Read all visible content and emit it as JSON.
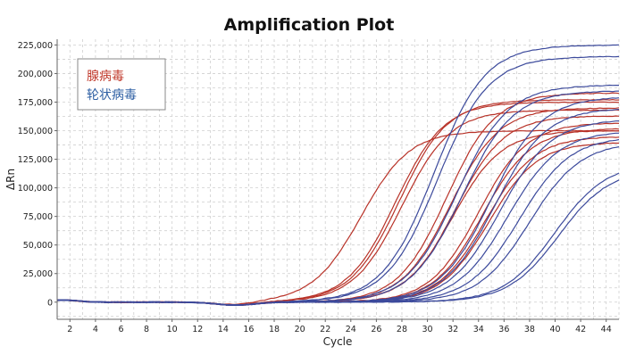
{
  "chart_data": {
    "type": "line",
    "title": "Amplification Plot",
    "xlabel": "Cycle",
    "ylabel": "ΔRn",
    "xlim": [
      1,
      45
    ],
    "ylim": [
      -15000,
      230000
    ],
    "xticks": [
      2,
      4,
      6,
      8,
      10,
      12,
      14,
      16,
      18,
      20,
      22,
      24,
      26,
      28,
      30,
      32,
      34,
      36,
      38,
      40,
      42,
      44
    ],
    "yticks": [
      0,
      25000,
      50000,
      75000,
      100000,
      125000,
      150000,
      175000,
      200000,
      225000
    ],
    "ytick_labels": [
      "0",
      "25,000",
      "50,000",
      "75,000",
      "100,000",
      "125,000",
      "150,000",
      "175,000",
      "200,000",
      "225,000"
    ],
    "grid": true,
    "legend": {
      "position": "top-left",
      "entries": [
        {
          "label": "腺病毒",
          "color": "#c0392b"
        },
        {
          "label": "轮状病毒",
          "color": "#2e5fa3"
        }
      ]
    },
    "series": [
      {
        "name": "腺病毒",
        "color": "#b83228",
        "curves": [
          {
            "plateau": 150000,
            "midpoint": 24.8,
            "slope": 1.9
          },
          {
            "plateau": 175000,
            "midpoint": 27.5,
            "slope": 1.9
          },
          {
            "plateau": 177000,
            "midpoint": 27.8,
            "slope": 1.9
          },
          {
            "plateau": 168000,
            "midpoint": 28.0,
            "slope": 1.9
          },
          {
            "plateau": 183000,
            "midpoint": 31.5,
            "slope": 1.9
          },
          {
            "plateau": 170000,
            "midpoint": 31.8,
            "slope": 1.9
          },
          {
            "plateau": 163000,
            "midpoint": 32.2,
            "slope": 1.9
          },
          {
            "plateau": 150000,
            "midpoint": 32.0,
            "slope": 1.9
          },
          {
            "plateau": 157000,
            "midpoint": 34.0,
            "slope": 1.9
          },
          {
            "plateau": 152000,
            "midpoint": 34.3,
            "slope": 1.9
          },
          {
            "plateau": 145000,
            "midpoint": 34.6,
            "slope": 1.9
          },
          {
            "plateau": 140000,
            "midpoint": 34.8,
            "slope": 1.9
          }
        ]
      },
      {
        "name": "轮状病毒",
        "color": "#3c4a9c",
        "curves": [
          {
            "plateau": 225000,
            "midpoint": 30.5,
            "slope": 2.0
          },
          {
            "plateau": 215000,
            "midpoint": 30.8,
            "slope": 2.0
          },
          {
            "plateau": 190000,
            "midpoint": 32.3,
            "slope": 2.0
          },
          {
            "plateau": 185000,
            "midpoint": 32.7,
            "slope": 2.0
          },
          {
            "plateau": 180000,
            "midpoint": 35.0,
            "slope": 2.0
          },
          {
            "plateau": 170000,
            "midpoint": 35.3,
            "slope": 2.0
          },
          {
            "plateau": 160000,
            "midpoint": 35.7,
            "slope": 2.0
          },
          {
            "plateau": 150000,
            "midpoint": 36.3,
            "slope": 2.0
          },
          {
            "plateau": 145000,
            "midpoint": 37.2,
            "slope": 2.0
          },
          {
            "plateau": 140000,
            "midpoint": 38.0,
            "slope": 2.0
          },
          {
            "plateau": 122000,
            "midpoint": 40.0,
            "slope": 2.0
          },
          {
            "plateau": 117000,
            "midpoint": 40.3,
            "slope": 2.0
          }
        ]
      }
    ]
  }
}
